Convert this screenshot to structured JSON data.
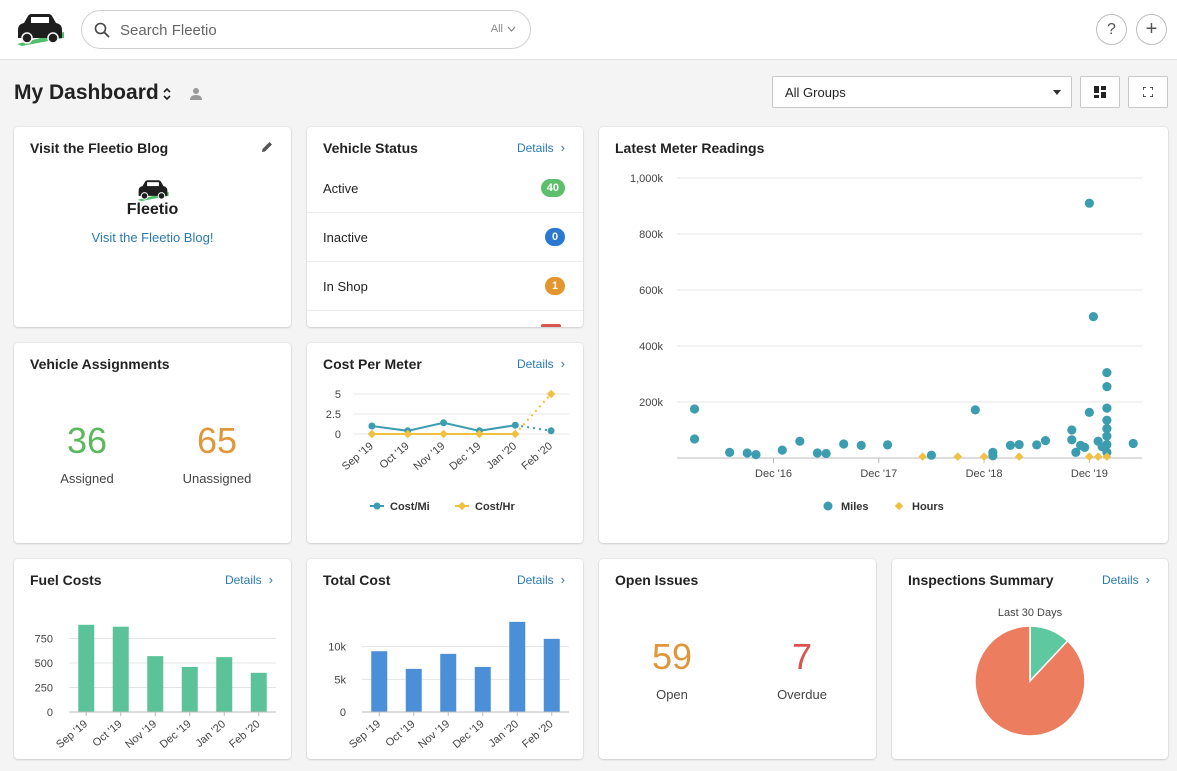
{
  "search": {
    "placeholder": "Search Fleetio",
    "scope": "All"
  },
  "header": {
    "help": "?",
    "add": "+"
  },
  "dashboard": {
    "title": "My Dashboard",
    "group_select": "All Groups"
  },
  "details_label": "Details",
  "blog": {
    "title": "Visit the Fleetio Blog",
    "logo_text": "Fleetio",
    "link": "Visit the Fleetio Blog!"
  },
  "vehicle_status": {
    "title": "Vehicle Status",
    "rows": [
      {
        "label": "Active",
        "count": "40",
        "color": "#5cbf6c"
      },
      {
        "label": "Inactive",
        "count": "0",
        "color": "#2a78cf"
      },
      {
        "label": "In Shop",
        "count": "1",
        "color": "#e3962e"
      }
    ]
  },
  "assignments": {
    "title": "Vehicle Assignments",
    "assigned": {
      "value": "36",
      "label": "Assigned",
      "color": "#5cb85c"
    },
    "unassigned": {
      "value": "65",
      "label": "Unassigned",
      "color": "#e0963a"
    }
  },
  "open_issues": {
    "title": "Open Issues",
    "open": {
      "value": "59",
      "label": "Open",
      "color": "#e0963a"
    },
    "overdue": {
      "value": "7",
      "label": "Overdue",
      "color": "#d9534f"
    }
  },
  "chart_data": [
    {
      "id": "cost_per_meter",
      "title": "Cost Per Meter",
      "type": "line",
      "categories": [
        "Sep '19",
        "Oct '19",
        "Nov '19",
        "Dec '19",
        "Jan '20",
        "Feb '20"
      ],
      "yticks": [
        "5",
        "2.5",
        "0"
      ],
      "ylim": [
        0,
        5.5
      ],
      "series": [
        {
          "name": "Cost/Mi",
          "color": "#3d9db0",
          "values": [
            1.0,
            0.4,
            1.4,
            0.4,
            1.1,
            0.4
          ]
        },
        {
          "name": "Cost/Hr",
          "color": "#f0c040",
          "values": [
            0,
            0,
            0,
            0,
            0,
            5.0
          ]
        }
      ]
    },
    {
      "id": "latest_meter_readings",
      "title": "Latest Meter Readings",
      "type": "scatter",
      "yticks": [
        "1,000k",
        "800k",
        "600k",
        "400k",
        "200k"
      ],
      "xticks": [
        "Dec '16",
        "Dec '17",
        "Dec '18",
        "Dec '19"
      ],
      "xlim": [
        "2016-01",
        "2020-06"
      ],
      "ylim": [
        0,
        1000000
      ],
      "series": [
        {
          "name": "Miles",
          "color": "#3d9db0",
          "points": [
            [
              "2016-03-01",
              175000
            ],
            [
              "2016-03-01",
              68000
            ],
            [
              "2016-07-01",
              20000
            ],
            [
              "2016-09-01",
              18000
            ],
            [
              "2016-10-01",
              12000
            ],
            [
              "2017-01-01",
              28000
            ],
            [
              "2017-03-01",
              60000
            ],
            [
              "2017-05-01",
              18000
            ],
            [
              "2017-06-01",
              16000
            ],
            [
              "2017-08-01",
              50000
            ],
            [
              "2017-10-01",
              45000
            ],
            [
              "2018-01-01",
              47000
            ],
            [
              "2018-06-01",
              10000
            ],
            [
              "2018-11-01",
              172000
            ],
            [
              "2019-01-01",
              20000
            ],
            [
              "2019-01-01",
              8000
            ],
            [
              "2019-03-01",
              45000
            ],
            [
              "2019-04-01",
              48000
            ],
            [
              "2019-06-01",
              47000
            ],
            [
              "2019-07-01",
              62000
            ],
            [
              "2019-10-01",
              100000
            ],
            [
              "2019-10-01",
              65000
            ],
            [
              "2019-10-15",
              20000
            ],
            [
              "2019-11-01",
              45000
            ],
            [
              "2019-11-15",
              38000
            ],
            [
              "2019-12-01",
              910000
            ],
            [
              "2019-12-01",
              163000
            ],
            [
              "2019-12-15",
              505000
            ],
            [
              "2020-01-01",
              60000
            ],
            [
              "2020-01-15",
              40000
            ],
            [
              "2020-02-01",
              305000
            ],
            [
              "2020-02-01",
              255000
            ],
            [
              "2020-02-01",
              178000
            ],
            [
              "2020-02-01",
              135000
            ],
            [
              "2020-02-01",
              105000
            ],
            [
              "2020-02-01",
              78000
            ],
            [
              "2020-02-01",
              48000
            ],
            [
              "2020-02-01",
              20000
            ],
            [
              "2020-05-01",
              52000
            ]
          ]
        },
        {
          "name": "Hours",
          "color": "#f0c040",
          "points": [
            [
              "2018-05-01",
              5000
            ],
            [
              "2018-09-01",
              5000
            ],
            [
              "2018-12-01",
              5000
            ],
            [
              "2019-04-01",
              5000
            ],
            [
              "2019-12-01",
              5000
            ],
            [
              "2020-01-01",
              5000
            ],
            [
              "2020-02-01",
              5000
            ]
          ]
        }
      ]
    },
    {
      "id": "fuel_costs",
      "title": "Fuel Costs",
      "type": "bar",
      "categories": [
        "Sep '19",
        "Oct '19",
        "Nov '19",
        "Dec '19",
        "Jan '20",
        "Feb '20"
      ],
      "values": [
        890,
        870,
        570,
        460,
        560,
        400
      ],
      "yticks": [
        "750",
        "500",
        "250",
        "0"
      ],
      "ylim": [
        0,
        1000
      ],
      "color": "#5cc29a"
    },
    {
      "id": "total_cost",
      "title": "Total Cost",
      "type": "bar",
      "categories": [
        "Sep '19",
        "Oct '19",
        "Nov '19",
        "Dec '19",
        "Jan '20",
        "Feb '20"
      ],
      "values": [
        9300,
        6600,
        8900,
        6900,
        13800,
        11200
      ],
      "yticks": [
        "10k",
        "5k",
        "0"
      ],
      "ylim": [
        0,
        15000
      ],
      "color": "#4a8fd8"
    },
    {
      "id": "inspections_summary",
      "title": "Inspections Summary",
      "type": "pie",
      "subtitle": "Last 30 Days",
      "slices": [
        {
          "value": 88,
          "color": "#ec7d5e"
        },
        {
          "value": 12,
          "color": "#5ec8a0"
        }
      ]
    }
  ]
}
